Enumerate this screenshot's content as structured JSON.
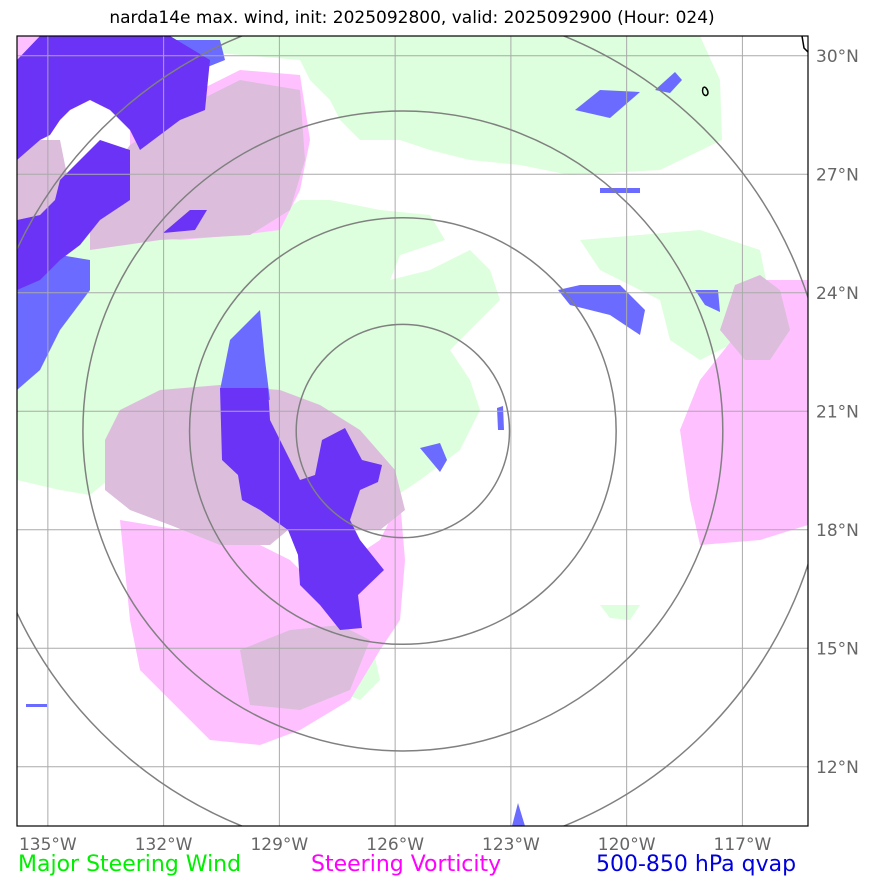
{
  "title": "narda14e max. wind, init: 2025092800, valid: 2025092900 (Hour: 024)",
  "legend": {
    "wind": "Major Steering Wind",
    "vorticity": "Steering Vorticity",
    "qvap": "500-850 hPa qvap"
  },
  "map": {
    "lon_range": [
      -135.8,
      -115.3
    ],
    "lat_range": [
      10.5,
      30.5
    ],
    "lon_ticks": [
      {
        "value": -135,
        "label": "135°W"
      },
      {
        "value": -132,
        "label": "132°W"
      },
      {
        "value": -129,
        "label": "129°W"
      },
      {
        "value": -126,
        "label": "126°W"
      },
      {
        "value": -123,
        "label": "123°W"
      },
      {
        "value": -120,
        "label": "120°W"
      },
      {
        "value": -117,
        "label": "117°W"
      }
    ],
    "lat_ticks": [
      {
        "value": 30,
        "label": "30°N"
      },
      {
        "value": 27,
        "label": "27°N"
      },
      {
        "value": 24,
        "label": "24°N"
      },
      {
        "value": 21,
        "label": "21°N"
      },
      {
        "value": 18,
        "label": "18°N"
      },
      {
        "value": 15,
        "label": "15°N"
      },
      {
        "value": 12,
        "label": "12°N"
      }
    ],
    "storm_center": {
      "lon": -125.8,
      "lat": 20.5
    },
    "range_rings_deg": [
      2.7,
      5.4,
      8.1,
      10.8
    ],
    "colors": {
      "wind": "#ddffdd",
      "vorticity": "#ffc0ff",
      "overlap": "#dcbedc",
      "qvap": "#6b6bff",
      "qvap_strong": "#6a33f5",
      "grid": "#aaaaaa",
      "rings": "#808080"
    }
  }
}
